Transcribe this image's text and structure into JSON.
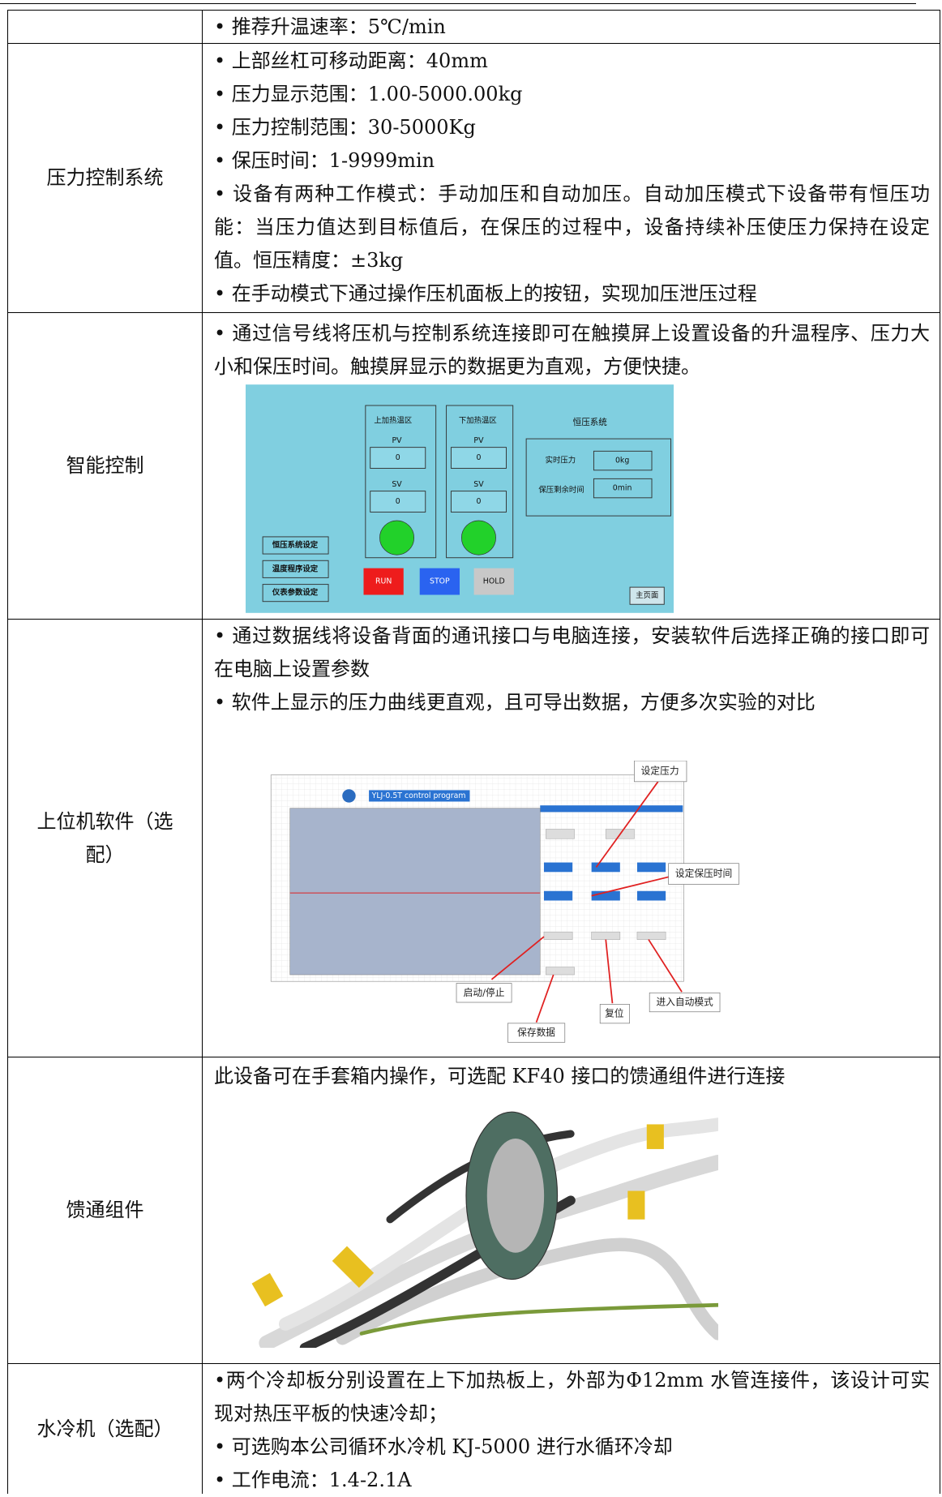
{
  "table": {
    "rows": [
      {
        "lines": [
          "•  推荐升温速率：5℃/min"
        ]
      },
      {
        "label": "压力控制系统",
        "lines": [
          "•  上部丝杠可移动距离：40mm",
          "•  压力显示范围：1.00-5000.00kg",
          "•  压力控制范围：30-5000Kg",
          "•  保压时间：1-9999min",
          "•  设备有两种工作模式：手动加压和自动加压。自动加压模式下设备带有恒压功能：当压力值达到目标值后，在保压的过程中，设备持续补压使压力保持在设定值。恒压精度：±3kg",
          "•  在手动模式下通过操作压机面板上的按钮，实现加压泄压过程"
        ]
      },
      {
        "label": "智能控制",
        "lines": [
          "•  通过信号线将压机与控制系统连接即可在触摸屏上设置设备的升温程序、压力大小和保压时间。触摸屏显示的数据更为直观，方便快捷。"
        ],
        "screen": {
          "upper_zone": "上加热温区",
          "lower_zone": "下加热温区",
          "pv": "PV",
          "sv": "SV",
          "upper_pv": "0",
          "upper_sv": "0",
          "lower_pv": "0",
          "lower_sv": "0",
          "pressure_system": "恒压系统",
          "realtime_pressure": "实时压力",
          "realtime_pressure_value": "0kg",
          "remaining_time": "保压剩余时间",
          "remaining_time_value": "0min",
          "buttons": [
            "恒压系统设定",
            "温度程序设定",
            "仪表参数设定"
          ],
          "run": "RUN",
          "stop": "STOP",
          "hold": "HOLD",
          "home": "主页面"
        }
      },
      {
        "label": "上位机软件（选配）",
        "lines": [
          "•  通过数据线将设备背面的通讯接口与电脑连接，安装软件后选择正确的接口即可在电脑上设置参数",
          "•  软件上显示的压力曲线更直观，且可导出数据，方便多次实验的对比"
        ],
        "software": {
          "title": "YLJ-0.5T control program",
          "set_pressure": "设定压力",
          "set_hold_time": "设定保压时间",
          "start_stop": "启动/停止",
          "save_data": "保存数据",
          "reset": "复位",
          "auto_mode": "进入自动模式"
        }
      },
      {
        "label": "馈通组件",
        "lines": [
          "此设备可在手套箱内操作，可选配 KF40 接口的馈通组件进行连接"
        ]
      },
      {
        "label": "水冷机（选配）",
        "lines": [
          "•两个冷却板分别设置在上下加热板上，外部为Φ12mm 水管连接件，该设计可实现对热压平板的快速冷却；",
          "•  可选购本公司循环水冷机 KJ-5000 进行水循环冷却",
          "•  工作电流：1.4-2.1A"
        ]
      }
    ]
  }
}
